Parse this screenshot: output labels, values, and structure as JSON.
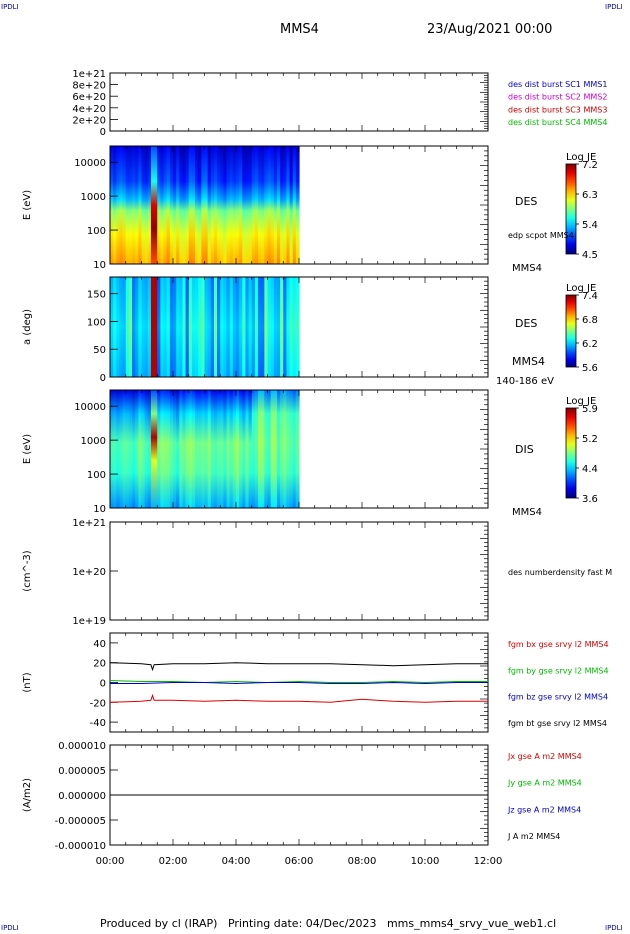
{
  "header": {
    "corner_label": "IPDLI",
    "spacecraft": "MMS4",
    "date": "23/Aug/2021 00:00"
  },
  "footer": {
    "text": "Produced by cl (IRAP)   Printing date: 04/Dec/2023   mms_mms4_srvy_vue_web1.cl"
  },
  "time_axis": {
    "range_hours": [
      0,
      12
    ],
    "ticks": [
      "00:00",
      "02:00",
      "04:00",
      "06:00",
      "08:00",
      "10:00",
      "12:00"
    ],
    "data_end_hours": 6.0
  },
  "chart_data": [
    {
      "type": "line",
      "name": "density-scatter-panel",
      "ytick_labels": [
        "1e+21",
        "8e+20",
        "6e+20",
        "4e+20",
        "2e+20",
        "0"
      ],
      "ytick_values": [
        1e+21,
        8e+20,
        6e+20,
        4e+20,
        2e+20,
        0
      ],
      "ylim": [
        0,
        1e+21
      ],
      "legend": [
        {
          "label": "des dist burst SC1 MMS1",
          "color": "#0000cc"
        },
        {
          "label": "des dist burst SC2 MMS2",
          "color": "#cc00cc"
        },
        {
          "label": "des dist burst SC3 MMS3",
          "color": "#cc0000"
        },
        {
          "label": "des dist burst SC4 MMS4",
          "color": "#00bb00"
        }
      ]
    },
    {
      "type": "heatmap",
      "name": "des-energy-spectrogram",
      "ylabel": "E (eV)",
      "yscale": "log",
      "ytick_labels": [
        "10000",
        "1000",
        "100",
        "10"
      ],
      "ytick_values": [
        10000,
        1000,
        100,
        10
      ],
      "ylim": [
        10,
        30000
      ],
      "label": "DES",
      "sublabel": "edp scpot MMS4",
      "bottom_label": "MMS4",
      "colorbar": {
        "title": "Log JE",
        "ticks": [
          "7.2",
          "6.3",
          "5.4",
          "4.5"
        ],
        "range": [
          4.5,
          7.2
        ]
      }
    },
    {
      "type": "heatmap",
      "name": "des-pitch-angle",
      "ylabel": "a (deg)",
      "ytick_labels": [
        "150",
        "100",
        "50",
        "0"
      ],
      "ytick_values": [
        150,
        100,
        50,
        0
      ],
      "ylim": [
        0,
        180
      ],
      "label": "DES",
      "sublabel": "MMS4",
      "bottom_label": "140-186 eV",
      "colorbar": {
        "title": "Log JE",
        "ticks": [
          "7.4",
          "6.8",
          "6.2",
          "5.6"
        ],
        "range": [
          5.6,
          7.4
        ]
      }
    },
    {
      "type": "heatmap",
      "name": "dis-energy-spectrogram",
      "ylabel": "E (eV)",
      "yscale": "log",
      "ytick_labels": [
        "10000",
        "1000",
        "100",
        "10"
      ],
      "ytick_values": [
        10000,
        1000,
        100,
        10
      ],
      "ylim": [
        10,
        30000
      ],
      "label": "DIS",
      "bottom_label": "MMS4",
      "colorbar": {
        "title": "Log JE",
        "ticks": [
          "5.9",
          "5.2",
          "4.4",
          "3.6"
        ],
        "range": [
          3.6,
          5.9
        ]
      }
    },
    {
      "type": "line",
      "name": "number-density",
      "ylabel": "(cm^-3)",
      "yscale": "log",
      "ytick_labels": [
        "1e+21",
        "1e+20",
        "1e+19"
      ],
      "ytick_values": [
        1e+21,
        1e+20,
        1e+19
      ],
      "ylim": [
        1e+19,
        1e+21
      ],
      "legend": [
        {
          "label": "des numberdensity fast M",
          "color": "#000000"
        }
      ]
    },
    {
      "type": "line",
      "name": "magnetic-field",
      "ylabel": "(nT)",
      "ytick_labels": [
        "40",
        "20",
        "0",
        "-20",
        "-40"
      ],
      "ytick_values": [
        40,
        20,
        0,
        -20,
        -40
      ],
      "ylim": [
        -50,
        50
      ],
      "legend": [
        {
          "label": "fgm bx gse srvy l2 MMS4",
          "color": "#dd0000"
        },
        {
          "label": "fgm by gse srvy l2 MMS4",
          "color": "#00bb00"
        },
        {
          "label": "fgm bz gse srvy l2 MMS4",
          "color": "#0000cc"
        },
        {
          "label": "fgm bt gse srvy l2 MMS4",
          "color": "#000000"
        }
      ],
      "series": [
        {
          "name": "fgm bx gse srvy l2 MMS4",
          "color": "#dd0000",
          "x": [
            0,
            1,
            1.3,
            1.35,
            1.4,
            2,
            3,
            4,
            5,
            6,
            7,
            8,
            9,
            10,
            11,
            12
          ],
          "values": [
            -20,
            -19,
            -18,
            -13,
            -18,
            -18,
            -19,
            -18,
            -19,
            -19,
            -20,
            -17,
            -19,
            -20,
            -19,
            -19
          ]
        },
        {
          "name": "fgm by gse srvy l2 MMS4",
          "color": "#00bb00",
          "x": [
            0,
            1,
            2,
            3,
            4,
            5,
            6,
            7,
            8,
            9,
            10,
            11,
            12
          ],
          "values": [
            2,
            1,
            1,
            0,
            1,
            0,
            1,
            0,
            0,
            1,
            0,
            1,
            1
          ]
        },
        {
          "name": "fgm bz gse srvy l2 MMS4",
          "color": "#0000cc",
          "x": [
            0,
            1,
            2,
            3,
            4,
            5,
            6,
            7,
            8,
            9,
            10,
            11,
            12
          ],
          "values": [
            -1,
            -1,
            0,
            0,
            -1,
            0,
            0,
            -1,
            -1,
            0,
            -1,
            0,
            0
          ]
        },
        {
          "name": "fgm bt gse srvy l2 MMS4",
          "color": "#000000",
          "x": [
            0,
            1,
            1.3,
            1.35,
            1.4,
            2,
            3,
            4,
            5,
            6,
            7,
            8,
            9,
            10,
            11,
            12
          ],
          "values": [
            20,
            19,
            18,
            13,
            18,
            19,
            19,
            20,
            19,
            19,
            19,
            18,
            17,
            18,
            19,
            19
          ]
        }
      ]
    },
    {
      "type": "line",
      "name": "current-density",
      "ylabel": "(A/m2)",
      "ytick_labels": [
        "0.000010",
        "0.000005",
        "0.000000",
        "-0.000005",
        "-0.000010"
      ],
      "ytick_values": [
        1e-05,
        5e-06,
        0,
        -5e-06,
        -1e-05
      ],
      "ylim": [
        -1e-05,
        1e-05
      ],
      "legend": [
        {
          "label": "Jx gse A m2 MMS4",
          "color": "#dd0000"
        },
        {
          "label": "Jy gse A m2 MMS4",
          "color": "#00bb00"
        },
        {
          "label": "Jz gse A m2 MMS4",
          "color": "#0000cc"
        },
        {
          "label": "J A m2 MMS4",
          "color": "#000000"
        }
      ],
      "series": [
        {
          "name": "J A m2 MMS4",
          "color": "#000000",
          "x": [
            0,
            12
          ],
          "values": [
            0,
            0
          ]
        }
      ]
    }
  ]
}
